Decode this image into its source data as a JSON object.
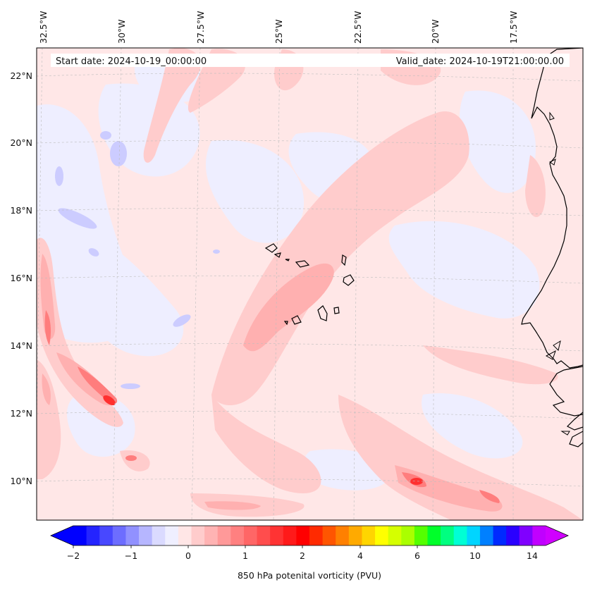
{
  "header": {
    "start_date": "Start date: 2024-10-19_00:00:00",
    "valid_date": "Valid_date: 2024-10-19T21:00:00.00"
  },
  "map": {
    "lon_labels": [
      "32.5°W",
      "30°W",
      "27.5°W",
      "25°W",
      "22.5°W",
      "20°W",
      "17.5°W"
    ],
    "lat_labels": [
      "22°N",
      "20°N",
      "18°N",
      "16°N",
      "14°N",
      "12°N",
      "10°N"
    ]
  },
  "colorbar": {
    "label": "850 hPa potenital vorticity (PVU)",
    "tick_labels": [
      "−2",
      "−1",
      "0",
      "1",
      "2",
      "4",
      "6",
      "10",
      "14"
    ],
    "colors": [
      "#0000ff",
      "#2424ff",
      "#4848ff",
      "#6d6dff",
      "#9191ff",
      "#b6b6ff",
      "#dadaff",
      "#efefff",
      "#ffe6e6",
      "#ffcccc",
      "#ffb3b3",
      "#ff9999",
      "#ff8080",
      "#ff6666",
      "#ff4d4d",
      "#ff3333",
      "#ff1a1a",
      "#ff0000",
      "#ff2a00",
      "#ff5500",
      "#ff8000",
      "#ffaa00",
      "#ffd500",
      "#ffff00",
      "#d5ff00",
      "#aaff00",
      "#55ff00",
      "#00ff2a",
      "#00ff80",
      "#00ffd5",
      "#00d5ff",
      "#0080ff",
      "#002aff",
      "#2a00ff",
      "#8000ff",
      "#c000ff"
    ],
    "under_color": "#0000ff",
    "over_color": "#d000ff"
  }
}
